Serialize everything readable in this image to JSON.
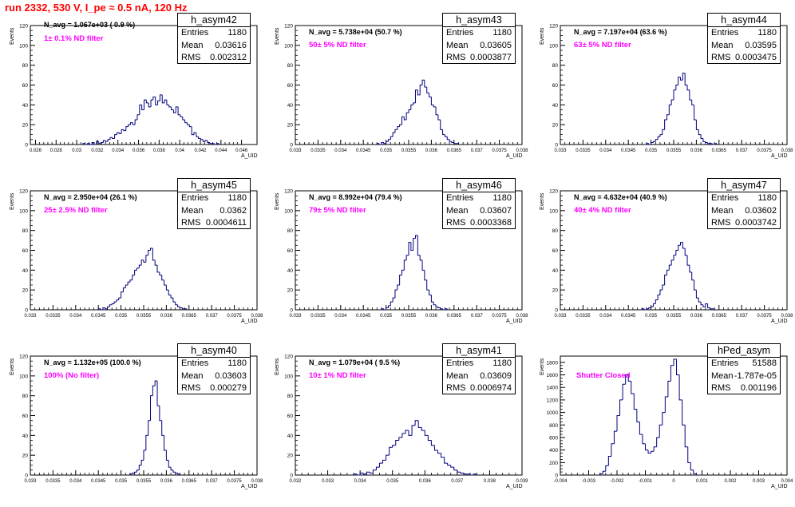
{
  "canvas_title": "run 2332,   530 V, I_pe ≈ 0.5 nA, 120 Hz",
  "chart_data": [
    {
      "type": "histogram",
      "hist_name": "h_asym42",
      "stats": {
        "entries": "1180",
        "mean": "0.03616",
        "rms": "0.002312"
      },
      "n_avg": "N_avg = 1.067e+03 ( 0.9 %)",
      "filter": "1± 0.1% ND filter",
      "xlabel": "A_UID",
      "ylabel": "Events",
      "xlim": [
        0.0255,
        0.0475
      ],
      "ylim": [
        0,
        120
      ],
      "xticks": [
        0.026,
        0.028,
        0.03,
        0.032,
        0.034,
        0.036,
        0.038,
        0.04,
        0.042,
        0.044,
        0.046
      ],
      "xtick_labels": [
        "0.026",
        "0.028",
        "0.03",
        "0.032",
        "0.034",
        "0.036",
        "0.038",
        "0.04",
        "0.042",
        "0.044",
        "0.046"
      ],
      "yticks": [
        0,
        20,
        40,
        60,
        80,
        100,
        120
      ],
      "bins": {
        "start": 0.0306,
        "width": 0.00022,
        "counts": [
          1,
          0,
          1,
          0,
          2,
          0,
          3,
          1,
          2,
          4,
          3,
          5,
          7,
          6,
          10,
          12,
          11,
          15,
          14,
          18,
          20,
          22,
          20,
          25,
          30,
          40,
          35,
          45,
          42,
          38,
          45,
          48,
          40,
          44,
          50,
          42,
          45,
          40,
          38,
          35,
          32,
          38,
          30,
          28,
          25,
          22,
          20,
          18,
          10,
          12,
          8,
          6,
          5,
          3,
          4,
          2,
          1,
          1,
          0,
          1
        ]
      }
    },
    {
      "type": "histogram",
      "hist_name": "h_asym43",
      "stats": {
        "entries": "1180",
        "mean": "0.03605",
        "rms": "0.0003877"
      },
      "n_avg": "N_avg = 5.738e+04 (50.7 %)",
      "filter": "50± 5% ND filter",
      "xlabel": "A_UID",
      "ylabel": "Events",
      "xlim": [
        0.033,
        0.038
      ],
      "ylim": [
        0,
        120
      ],
      "xticks": [
        0.033,
        0.0335,
        0.034,
        0.0345,
        0.035,
        0.0355,
        0.036,
        0.0365,
        0.037,
        0.0375,
        0.038
      ],
      "xtick_labels": [
        "0.033",
        "0.0335",
        "0.034",
        "0.0345",
        "0.035",
        "0.0355",
        "0.036",
        "0.0365",
        "0.037",
        "0.0375",
        "0.038"
      ],
      "yticks": [
        0,
        20,
        40,
        60,
        80,
        100,
        120
      ],
      "bins": {
        "start": 0.0348,
        "width": 5e-05,
        "counts": [
          1,
          0,
          2,
          1,
          3,
          5,
          8,
          12,
          15,
          18,
          20,
          28,
          25,
          32,
          35,
          40,
          42,
          55,
          50,
          60,
          65,
          58,
          52,
          48,
          40,
          38,
          30,
          25,
          15,
          10,
          8,
          5,
          3,
          2,
          1,
          1
        ]
      }
    },
    {
      "type": "histogram",
      "hist_name": "h_asym44",
      "stats": {
        "entries": "1180",
        "mean": "0.03595",
        "rms": "0.0003475"
      },
      "n_avg": "N_avg = 7.197e+04 (63.6 %)",
      "filter": "63± 5% ND filter",
      "xlabel": "A_UID",
      "ylabel": "Events",
      "xlim": [
        0.033,
        0.038
      ],
      "ylim": [
        0,
        120
      ],
      "xticks": [
        0.033,
        0.0335,
        0.034,
        0.0345,
        0.035,
        0.0355,
        0.036,
        0.0365,
        0.037,
        0.0375,
        0.038
      ],
      "xtick_labels": [
        "0.033",
        "0.0335",
        "0.034",
        "0.0345",
        "0.035",
        "0.0355",
        "0.036",
        "0.0365",
        "0.037",
        "0.0375",
        "0.038"
      ],
      "yticks": [
        0,
        20,
        40,
        60,
        80,
        100,
        120
      ],
      "bins": {
        "start": 0.0349,
        "width": 5e-05,
        "counts": [
          1,
          0,
          2,
          3,
          5,
          8,
          10,
          15,
          25,
          30,
          40,
          45,
          55,
          60,
          68,
          65,
          72,
          60,
          55,
          45,
          40,
          25,
          15,
          10,
          6,
          3,
          2,
          1,
          1,
          0,
          1
        ]
      }
    },
    {
      "type": "histogram",
      "hist_name": "h_asym45",
      "stats": {
        "entries": "1180",
        "mean": "0.0362",
        "rms": "0.0004611"
      },
      "n_avg": "N_avg = 2.950e+04 (26.1 %)",
      "filter": "25± 2.5% ND filter",
      "xlabel": "A_UID",
      "ylabel": "Events",
      "xlim": [
        0.033,
        0.038
      ],
      "ylim": [
        0,
        120
      ],
      "xticks": [
        0.033,
        0.0335,
        0.034,
        0.0345,
        0.035,
        0.0355,
        0.036,
        0.0365,
        0.037,
        0.0375,
        0.038
      ],
      "xtick_labels": [
        "0.033",
        "0.0335",
        "0.034",
        "0.0345",
        "0.035",
        "0.0355",
        "0.036",
        "0.0365",
        "0.037",
        "0.0375",
        "0.038"
      ],
      "yticks": [
        0,
        20,
        40,
        60,
        80,
        100,
        120
      ],
      "bins": {
        "start": 0.0345,
        "width": 5e-05,
        "counts": [
          1,
          0,
          2,
          1,
          3,
          5,
          6,
          8,
          10,
          12,
          18,
          22,
          25,
          28,
          30,
          35,
          40,
          42,
          45,
          50,
          48,
          55,
          60,
          62,
          50,
          45,
          38,
          35,
          30,
          25,
          20,
          15,
          12,
          8,
          5,
          3,
          2,
          1,
          1
        ]
      }
    },
    {
      "type": "histogram",
      "hist_name": "h_asym46",
      "stats": {
        "entries": "1180",
        "mean": "0.03607",
        "rms": "0.0003368"
      },
      "n_avg": "N_avg = 8.992e+04 (79.4 %)",
      "filter": "79± 5% ND filter",
      "xlabel": "A_UID",
      "ylabel": "Events",
      "xlim": [
        0.033,
        0.038
      ],
      "ylim": [
        0,
        120
      ],
      "xticks": [
        0.033,
        0.0335,
        0.034,
        0.0345,
        0.035,
        0.0355,
        0.036,
        0.0365,
        0.037,
        0.0375,
        0.038
      ],
      "xtick_labels": [
        "0.033",
        "0.0335",
        "0.034",
        "0.0345",
        "0.035",
        "0.0355",
        "0.036",
        "0.0365",
        "0.037",
        "0.0375",
        "0.038"
      ],
      "yticks": [
        0,
        20,
        40,
        60,
        80,
        100,
        120
      ],
      "bins": {
        "start": 0.0349,
        "width": 5e-05,
        "counts": [
          1,
          0,
          2,
          4,
          8,
          12,
          20,
          25,
          35,
          40,
          50,
          55,
          68,
          60,
          72,
          75,
          55,
          50,
          40,
          30,
          20,
          15,
          8,
          5,
          3,
          2,
          1,
          0,
          1
        ]
      }
    },
    {
      "type": "histogram",
      "hist_name": "h_asym47",
      "stats": {
        "entries": "1180",
        "mean": "0.03602",
        "rms": "0.0003742"
      },
      "n_avg": "N_avg = 4.632e+04 (40.9 %)",
      "filter": "40± 4% ND filter",
      "xlabel": "A_UID",
      "ylabel": "Events",
      "xlim": [
        0.033,
        0.038
      ],
      "ylim": [
        0,
        120
      ],
      "xticks": [
        0.033,
        0.0335,
        0.034,
        0.0345,
        0.035,
        0.0355,
        0.036,
        0.0365,
        0.037,
        0.0375,
        0.038
      ],
      "xtick_labels": [
        "0.033",
        "0.0335",
        "0.034",
        "0.0345",
        "0.035",
        "0.0355",
        "0.036",
        "0.0365",
        "0.037",
        "0.0375",
        "0.038"
      ],
      "yticks": [
        0,
        20,
        40,
        60,
        80,
        100,
        120
      ],
      "bins": {
        "start": 0.0348,
        "width": 5e-05,
        "counts": [
          1,
          0,
          1,
          2,
          3,
          6,
          10,
          15,
          20,
          25,
          35,
          40,
          45,
          50,
          55,
          60,
          65,
          68,
          62,
          55,
          45,
          38,
          30,
          20,
          12,
          8,
          5,
          3,
          6,
          2,
          1,
          1
        ]
      }
    },
    {
      "type": "histogram",
      "hist_name": "h_asym40",
      "stats": {
        "entries": "1180",
        "mean": "0.03603",
        "rms": "0.000279"
      },
      "n_avg": "N_avg = 1.132e+05 (100.0 %)",
      "filter": "100% (No filter)",
      "xlabel": "A_UID",
      "ylabel": "Events",
      "xlim": [
        0.033,
        0.038
      ],
      "ylim": [
        0,
        120
      ],
      "xticks": [
        0.033,
        0.0335,
        0.034,
        0.0345,
        0.035,
        0.0355,
        0.036,
        0.0365,
        0.037,
        0.0375,
        0.038
      ],
      "xtick_labels": [
        "0.033",
        "0.0335",
        "0.034",
        "0.0345",
        "0.035",
        "0.0355",
        "0.036",
        "0.0365",
        "0.037",
        "0.0375",
        "0.038"
      ],
      "yticks": [
        0,
        20,
        40,
        60,
        80,
        100,
        120
      ],
      "bins": {
        "start": 0.0352,
        "width": 5e-05,
        "counts": [
          1,
          2,
          3,
          5,
          10,
          15,
          25,
          40,
          55,
          80,
          90,
          95,
          70,
          55,
          40,
          25,
          15,
          8,
          5,
          3,
          2,
          1
        ]
      }
    },
    {
      "type": "histogram",
      "hist_name": "h_asym41",
      "stats": {
        "entries": "1180",
        "mean": "0.03609",
        "rms": "0.0006974"
      },
      "n_avg": "N_avg = 1.079e+04 ( 9.5 %)",
      "filter": "10± 1% ND filter",
      "xlabel": "A_UID",
      "ylabel": "Events",
      "xlim": [
        0.032,
        0.039
      ],
      "ylim": [
        0,
        120
      ],
      "xticks": [
        0.032,
        0.033,
        0.034,
        0.035,
        0.036,
        0.037,
        0.038,
        0.039
      ],
      "xtick_labels": [
        "0.032",
        "0.033",
        "0.034",
        "0.035",
        "0.036",
        "0.037",
        "0.038",
        "0.039"
      ],
      "yticks": [
        0,
        20,
        40,
        60,
        80,
        100,
        120
      ],
      "bins": {
        "start": 0.0338,
        "width": 0.0001,
        "counts": [
          1,
          0,
          2,
          1,
          3,
          2,
          5,
          8,
          12,
          15,
          20,
          28,
          30,
          35,
          38,
          42,
          45,
          40,
          50,
          55,
          48,
          45,
          40,
          35,
          30,
          25,
          22,
          18,
          12,
          10,
          8,
          5,
          3,
          2,
          1,
          1,
          0,
          1
        ]
      }
    },
    {
      "type": "histogram",
      "hist_name": "hPed_asym",
      "stats": {
        "entries": "51588",
        "mean": "-1.787e-05",
        "rms": "0.001196"
      },
      "n_avg": "",
      "filter": "Shutter Closed",
      "xlabel": "A_UID",
      "ylabel": "Events",
      "xlim": [
        -0.004,
        0.004
      ],
      "ylim": [
        0,
        1900
      ],
      "xticks": [
        -0.004,
        -0.003,
        -0.002,
        -0.001,
        0,
        0.001,
        0.002,
        0.003,
        0.004
      ],
      "xtick_labels": [
        "-0.004",
        "-0.003",
        "-0.002",
        "-0.001",
        "0",
        "0.001",
        "0.002",
        "0.003",
        "0.004"
      ],
      "yticks": [
        0,
        200,
        400,
        600,
        800,
        1000,
        1200,
        1400,
        1600,
        1800
      ],
      "bins": {
        "start": -0.0026,
        "width": 0.0001,
        "counts": [
          20,
          60,
          150,
          300,
          500,
          700,
          950,
          1200,
          1450,
          1600,
          1500,
          1300,
          1050,
          850,
          650,
          500,
          400,
          350,
          380,
          450,
          600,
          800,
          1000,
          1250,
          1500,
          1750,
          1850,
          1600,
          1200,
          800,
          450,
          200,
          80,
          20
        ]
      }
    }
  ]
}
